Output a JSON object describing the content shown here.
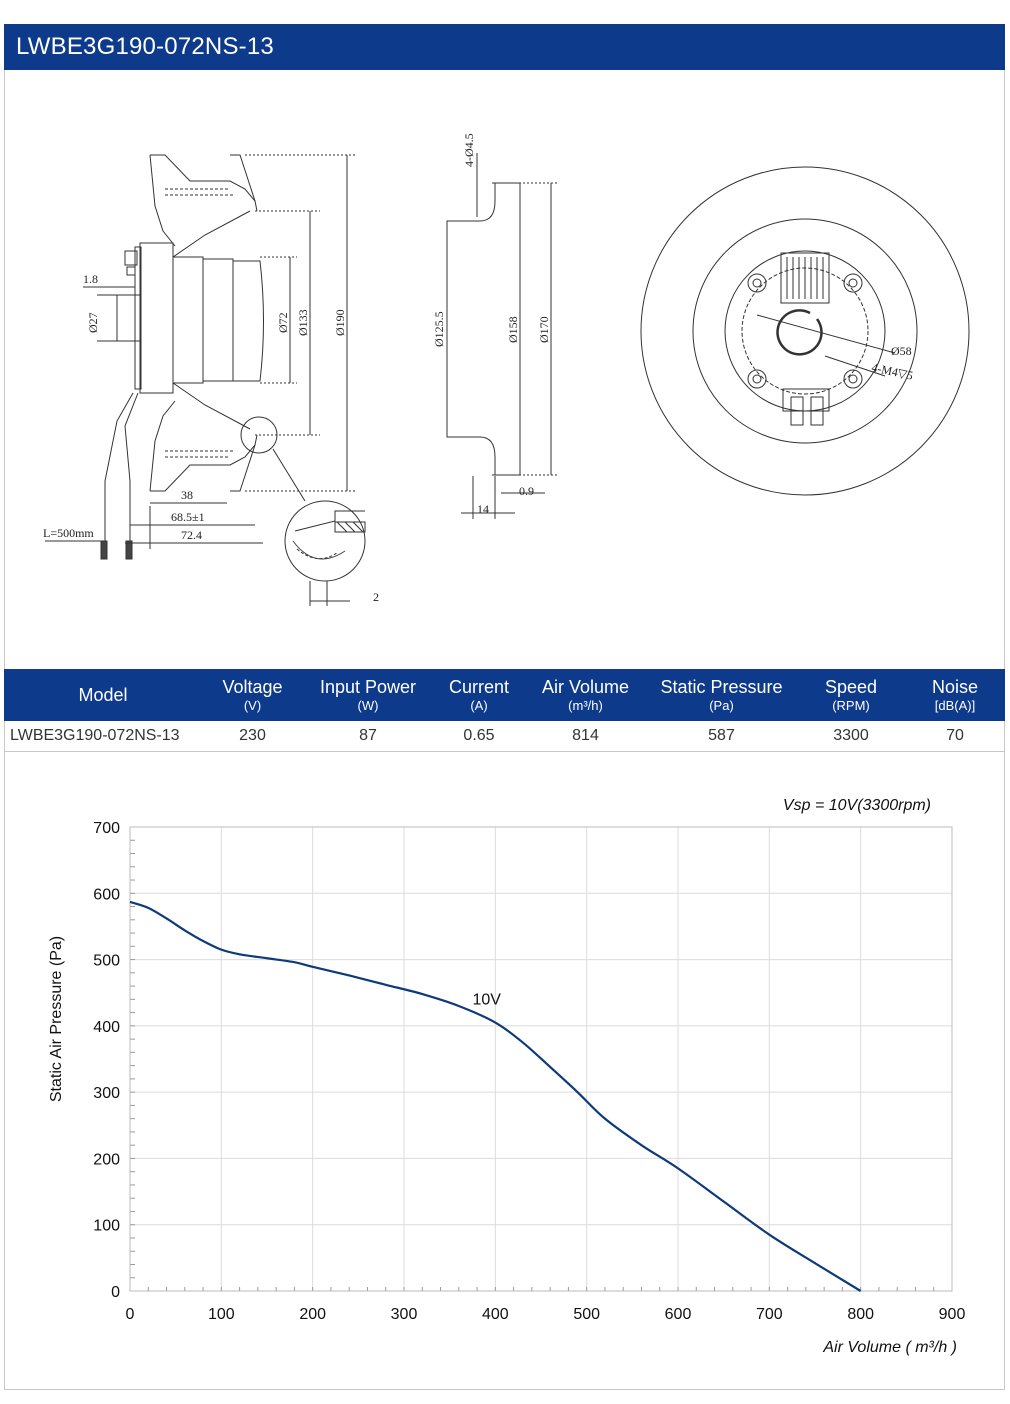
{
  "header": {
    "title": "LWBE3G190-072NS-13"
  },
  "drawing": {
    "side_view": {
      "dim_1_8": "1.8",
      "dim_d27": "Ø27",
      "dim_d72": "Ø72",
      "dim_d133": "Ø133",
      "dim_d190": "Ø190",
      "dim_38": "38",
      "dim_68_5": "68.5±1",
      "dim_72_4": "72.4",
      "cable_length": "L=500mm",
      "detail_2": "2"
    },
    "profile_view": {
      "holes": "4-Ø4.5",
      "dim_d125_5": "Ø125.5",
      "dim_d158": "Ø158",
      "dim_d170": "Ø170",
      "dim_0_9": "0.9",
      "dim_14": "14"
    },
    "front_view": {
      "dim_d58": "Ø58",
      "threads": "4-M4▽5"
    }
  },
  "spec_table": {
    "headers": [
      {
        "label": "Model",
        "unit": ""
      },
      {
        "label": "Voltage",
        "unit": "(V)"
      },
      {
        "label": "Input Power",
        "unit": "(W)"
      },
      {
        "label": "Current",
        "unit": "(A)"
      },
      {
        "label": "Air Volume",
        "unit": "(m³/h)"
      },
      {
        "label": "Static Pressure",
        "unit": "(Pa)"
      },
      {
        "label": "Speed",
        "unit": "(RPM)"
      },
      {
        "label": "Noise",
        "unit": "[dB(A)]"
      }
    ],
    "row": [
      "LWBE3G190-072NS-13",
      "230",
      "87",
      "0.65",
      "814",
      "587",
      "3300",
      "70"
    ]
  },
  "chart_data": {
    "type": "line",
    "title": "Vsp = 10V(3300rpm)",
    "xlabel": "Air Volume ( m³/h )",
    "ylabel": "Static Air Pressure  (Pa)",
    "xlim": [
      0,
      900
    ],
    "ylim": [
      0,
      700
    ],
    "x_ticks": [
      0,
      100,
      200,
      300,
      400,
      500,
      600,
      700,
      800,
      900
    ],
    "y_ticks": [
      0,
      100,
      200,
      300,
      400,
      500,
      600,
      700
    ],
    "grid": true,
    "series": [
      {
        "name": "10V",
        "color": "#0e3a7a",
        "x": [
          0,
          20,
          40,
          60,
          80,
          100,
          120,
          150,
          180,
          200,
          240,
          280,
          320,
          360,
          400,
          430,
          460,
          490,
          520,
          560,
          600,
          650,
          700,
          750,
          800
        ],
        "y": [
          587,
          578,
          562,
          544,
          528,
          515,
          508,
          502,
          496,
          489,
          476,
          462,
          448,
          430,
          405,
          375,
          338,
          300,
          260,
          220,
          185,
          135,
          85,
          42,
          0
        ]
      }
    ]
  }
}
